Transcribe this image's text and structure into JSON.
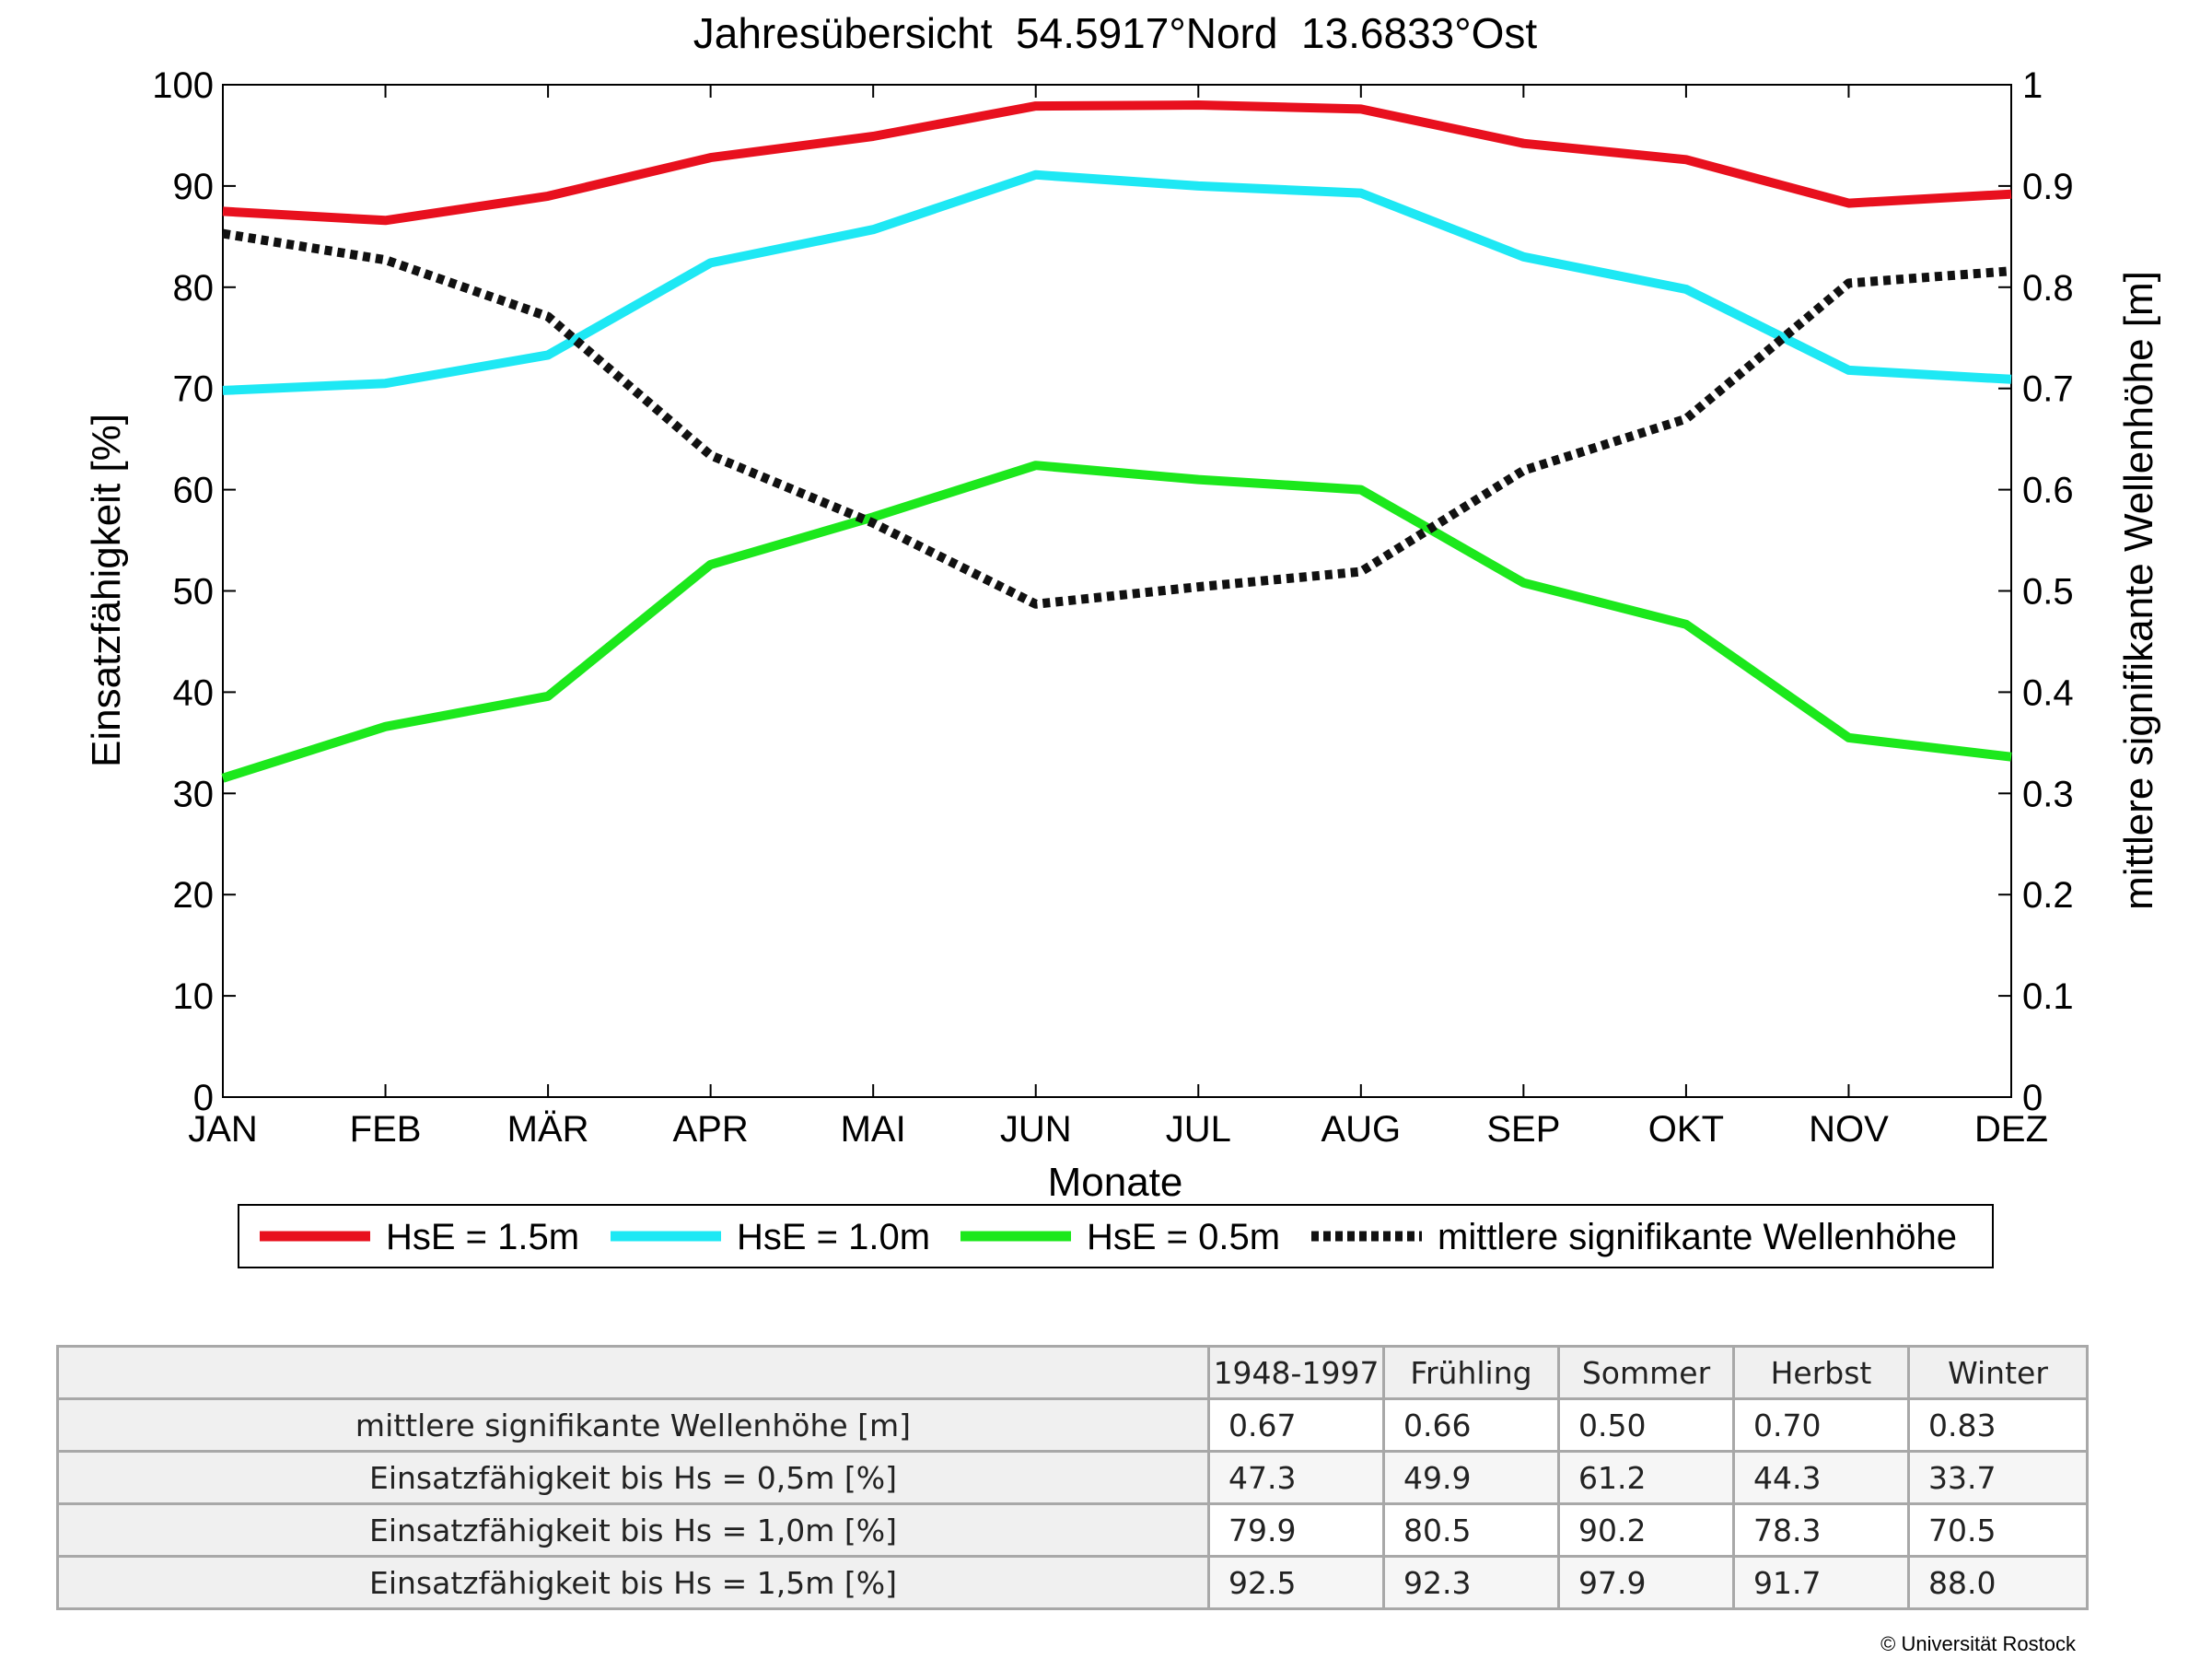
{
  "chart_data": {
    "type": "line",
    "title": "Jahresübersicht  54.5917°Nord  13.6833°Ost",
    "xlabel": "Monate",
    "ylabel": "Einsatzfähigkeit [%]",
    "y2label": "mittlere signifikante Wellenhöhe [m]",
    "categories": [
      "JAN",
      "FEB",
      "MÄR",
      "APR",
      "MAI",
      "JUN",
      "JUL",
      "AUG",
      "SEP",
      "OKT",
      "NOV",
      "DEZ"
    ],
    "ylim": [
      0,
      100
    ],
    "y2lim": [
      0,
      1
    ],
    "yticks": [
      "0",
      "10",
      "20",
      "30",
      "40",
      "50",
      "60",
      "70",
      "80",
      "90",
      "100"
    ],
    "y2ticks": [
      "0",
      "0.1",
      "0.2",
      "0.3",
      "0.4",
      "0.5",
      "0.6",
      "0.7",
      "0.8",
      "0.9",
      "1"
    ],
    "grid": false,
    "legend_placement": "bottom",
    "series": [
      {
        "name": "HsE = 1.5m",
        "axis": "left",
        "color": "#e8101e",
        "style": "solid",
        "values": [
          87.5,
          86.6,
          89.0,
          92.8,
          94.9,
          97.9,
          98.0,
          97.6,
          94.2,
          92.6,
          88.3,
          89.2
        ]
      },
      {
        "name": "HsE = 1.0m",
        "axis": "left",
        "color": "#1ee8f4",
        "style": "solid",
        "values": [
          69.8,
          70.5,
          73.3,
          82.4,
          85.7,
          91.1,
          90.0,
          89.3,
          83.0,
          79.8,
          71.8,
          70.9
        ]
      },
      {
        "name": "HsE = 0.5m",
        "axis": "left",
        "color": "#1ce81c",
        "style": "solid",
        "values": [
          31.5,
          36.6,
          39.6,
          52.6,
          57.3,
          62.4,
          61.0,
          60.0,
          50.8,
          46.7,
          35.5,
          33.6
        ]
      },
      {
        "name": "mittlere signifikante Wellenhöhe",
        "axis": "right",
        "color": "#111111",
        "style": "dotted",
        "values": [
          0.853,
          0.827,
          0.771,
          0.634,
          0.567,
          0.487,
          0.504,
          0.519,
          0.619,
          0.67,
          0.804,
          0.816
        ]
      }
    ]
  },
  "table": {
    "headers": [
      "1948-1997",
      "Frühling",
      "Sommer",
      "Herbst",
      "Winter"
    ],
    "rows": [
      {
        "label": "mittlere signifikante Wellenhöhe [m]",
        "values": [
          "0.67",
          "0.66",
          "0.50",
          "0.70",
          "0.83"
        ]
      },
      {
        "label": "Einsatzfähigkeit bis Hs = 0,5m [%]",
        "values": [
          "47.3",
          "49.9",
          "61.2",
          "44.3",
          "33.7"
        ]
      },
      {
        "label": "Einsatzfähigkeit bis Hs = 1,0m [%]",
        "values": [
          "79.9",
          "80.5",
          "90.2",
          "78.3",
          "70.5"
        ]
      },
      {
        "label": "Einsatzfähigkeit bis Hs = 1,5m [%]",
        "values": [
          "92.5",
          "92.3",
          "97.9",
          "91.7",
          "88.0"
        ]
      }
    ]
  },
  "copyright": "© Universität Rostock"
}
